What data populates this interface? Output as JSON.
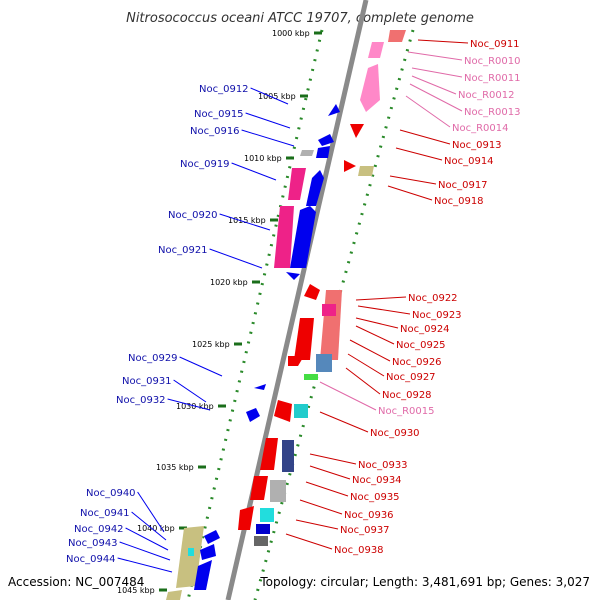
{
  "title": "Nitrosococcus oceani ATCC 19707, complete genome",
  "accession": "Accession: NC_007484",
  "topology": "Topology: circular; Length: 3,481,691 bp; Genes: 3,027",
  "colors": {
    "backbone": "#888888",
    "tick_dot": "#2a8a2a",
    "tick_dash": "#1a6e1a",
    "forward_gene": "#0000ee",
    "reverse_gene": "#ee0000",
    "rna": "#ff88c8",
    "blue_label": "#1010aa",
    "red_label": "#cc0000",
    "pink_label": "#e06aa8",
    "magenta_gene": "#ee2288",
    "olive_gene": "#c8c080",
    "grey_gene": "#b0b0b0",
    "cyan_gene": "#22dddd"
  },
  "ticks": [
    "1000 kbp",
    "1005 kbp",
    "1010 kbp",
    "1015 kbp",
    "1020 kbp",
    "1025 kbp",
    "1030 kbp",
    "1035 kbp",
    "1040 kbp",
    "1045 kbp"
  ],
  "left_labels": [
    "Noc_0912",
    "Noc_0915",
    "Noc_0916",
    "Noc_0919",
    "Noc_0920",
    "Noc_0921",
    "Noc_0929",
    "Noc_0931",
    "Noc_0932",
    "Noc_0940",
    "Noc_0941",
    "Noc_0942",
    "Noc_0943",
    "Noc_0944"
  ],
  "right_labels": [
    {
      "text": "Noc_0911",
      "kind": "red"
    },
    {
      "text": "Noc_R0010",
      "kind": "pink"
    },
    {
      "text": "Noc_R0011",
      "kind": "pink"
    },
    {
      "text": "Noc_R0012",
      "kind": "pink"
    },
    {
      "text": "Noc_R0013",
      "kind": "pink"
    },
    {
      "text": "Noc_R0014",
      "kind": "pink"
    },
    {
      "text": "Noc_0913",
      "kind": "red"
    },
    {
      "text": "Noc_0914",
      "kind": "red"
    },
    {
      "text": "Noc_0917",
      "kind": "red"
    },
    {
      "text": "Noc_0918",
      "kind": "red"
    },
    {
      "text": "Noc_0922",
      "kind": "red"
    },
    {
      "text": "Noc_0923",
      "kind": "red"
    },
    {
      "text": "Noc_0924",
      "kind": "red"
    },
    {
      "text": "Noc_0925",
      "kind": "red"
    },
    {
      "text": "Noc_0926",
      "kind": "red"
    },
    {
      "text": "Noc_0927",
      "kind": "red"
    },
    {
      "text": "Noc_0928",
      "kind": "red"
    },
    {
      "text": "Noc_R0015",
      "kind": "pink"
    },
    {
      "text": "Noc_0930",
      "kind": "red"
    },
    {
      "text": "Noc_0933",
      "kind": "red"
    },
    {
      "text": "Noc_0934",
      "kind": "red"
    },
    {
      "text": "Noc_0935",
      "kind": "red"
    },
    {
      "text": "Noc_0936",
      "kind": "red"
    },
    {
      "text": "Noc_0937",
      "kind": "red"
    },
    {
      "text": "Noc_0938",
      "kind": "red"
    }
  ]
}
